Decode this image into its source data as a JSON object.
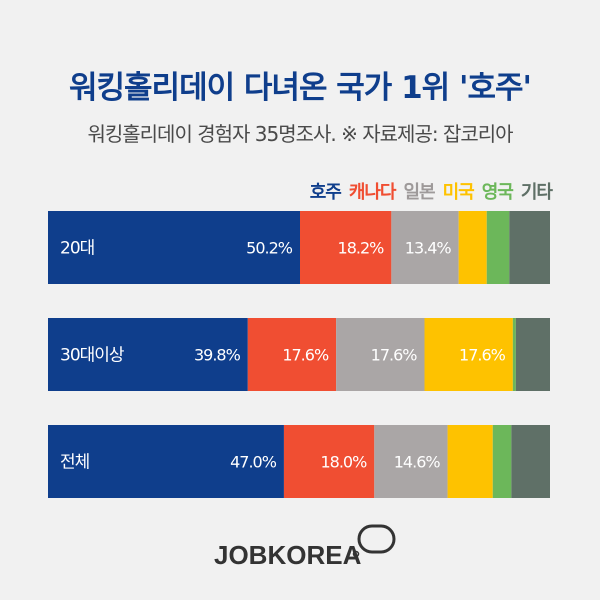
{
  "title": "워킹홀리데이 다녀온 국가 1위 '호주'",
  "subtitle": "워킹홀리데이 경험자 35명조사. ※ 자료제공: 잡코리아",
  "brand": "JOBKOREA",
  "colors": {
    "title": "#0f3e8c",
    "row_label": "#ffffff",
    "value_label": "#ffffff"
  },
  "chart_data": {
    "type": "bar",
    "orientation": "horizontal",
    "stacked": true,
    "normalized": true,
    "categories": [
      "20대",
      "30대이상",
      "전체"
    ],
    "series": [
      {
        "name": "호주",
        "color": "#0f3e8c",
        "values": [
          50.2,
          39.8,
          47.0
        ],
        "labels": [
          "50.2%",
          "39.8%",
          "47.0%"
        ]
      },
      {
        "name": "캐나다",
        "color": "#f04e32",
        "values": [
          18.2,
          17.6,
          18.0
        ],
        "labels": [
          "18.2%",
          "17.6%",
          "18.0%"
        ]
      },
      {
        "name": "일본",
        "color": "#aaa6a6",
        "values": [
          13.4,
          17.6,
          14.6
        ],
        "labels": [
          "13.4%",
          "17.6%",
          "14.6%"
        ]
      },
      {
        "name": "미국",
        "color": "#fec200",
        "values": [
          5.6,
          17.6,
          9.0
        ],
        "labels": [
          "",
          "17.6%",
          ""
        ]
      },
      {
        "name": "영국",
        "color": "#6cb75a",
        "values": [
          4.5,
          0.6,
          3.7
        ],
        "labels": [
          "",
          "",
          ""
        ]
      },
      {
        "name": "기타",
        "color": "#5f7067",
        "values": [
          8.1,
          6.8,
          7.7
        ],
        "labels": [
          "",
          "",
          ""
        ]
      }
    ],
    "legend_position": "top-right",
    "grid": false
  }
}
